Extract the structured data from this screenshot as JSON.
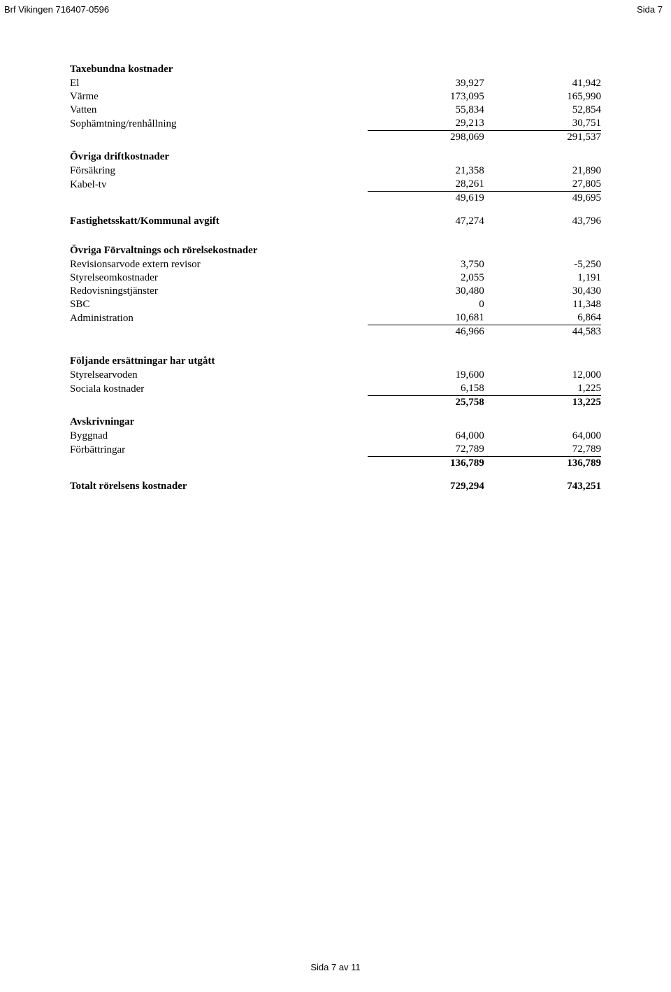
{
  "header": {
    "left": "Brf Vikingen 716407-0596",
    "right": "Sida 7"
  },
  "sections": {
    "taxebundna": {
      "title": "Taxebundna kostnader",
      "rows": [
        {
          "label": "El",
          "v1": "39,927",
          "v2": "41,942"
        },
        {
          "label": "Värme",
          "v1": "173,095",
          "v2": "165,990"
        },
        {
          "label": "Vatten",
          "v1": "55,834",
          "v2": "52,854"
        },
        {
          "label": "Sophämtning/renhållning",
          "v1": "29,213",
          "v2": "30,751"
        }
      ],
      "total": {
        "v1": "298,069",
        "v2": "291,537"
      }
    },
    "drift": {
      "title": "Övriga driftkostnader",
      "rows": [
        {
          "label": "Försäkring",
          "v1": "21,358",
          "v2": "21,890"
        },
        {
          "label": "Kabel-tv",
          "v1": "28,261",
          "v2": "27,805"
        }
      ],
      "total": {
        "v1": "49,619",
        "v2": "49,695"
      }
    },
    "fastighetsskatt": {
      "label": "Fastighetsskatt/Kommunal avgift",
      "v1": "47,274",
      "v2": "43,796"
    },
    "forvaltnings": {
      "title": "Övriga Förvaltnings och rörelsekostnader",
      "rows": [
        {
          "label": "Revisionsarvode extern revisor",
          "v1": "3,750",
          "v2": "-5,250"
        },
        {
          "label": "Styrelseomkostnader",
          "v1": "2,055",
          "v2": "1,191"
        },
        {
          "label": "Redovisningstjänster",
          "v1": "30,480",
          "v2": "30,430"
        },
        {
          "label": "SBC",
          "v1": "0",
          "v2": "11,348"
        },
        {
          "label": "Administration",
          "v1": "10,681",
          "v2": "6,864"
        }
      ],
      "total": {
        "v1": "46,966",
        "v2": "44,583"
      }
    },
    "ersattningar": {
      "title": "Följande ersättningar har utgått",
      "rows": [
        {
          "label": "Styrelsearvoden",
          "v1": "19,600",
          "v2": "12,000"
        },
        {
          "label": "Sociala kostnader",
          "v1": "6,158",
          "v2": "1,225"
        }
      ],
      "total": {
        "v1": "25,758",
        "v2": "13,225"
      }
    },
    "avskrivningar": {
      "title": "Avskrivningar",
      "rows": [
        {
          "label": "Byggnad",
          "v1": "64,000",
          "v2": "64,000"
        },
        {
          "label": "Förbättringar",
          "v1": "72,789",
          "v2": "72,789"
        }
      ],
      "total": {
        "v1": "136,789",
        "v2": "136,789"
      }
    },
    "totalt": {
      "label": "Totalt rörelsens kostnader",
      "v1": "729,294",
      "v2": "743,251"
    }
  },
  "footer": "Sida 7 av 11"
}
